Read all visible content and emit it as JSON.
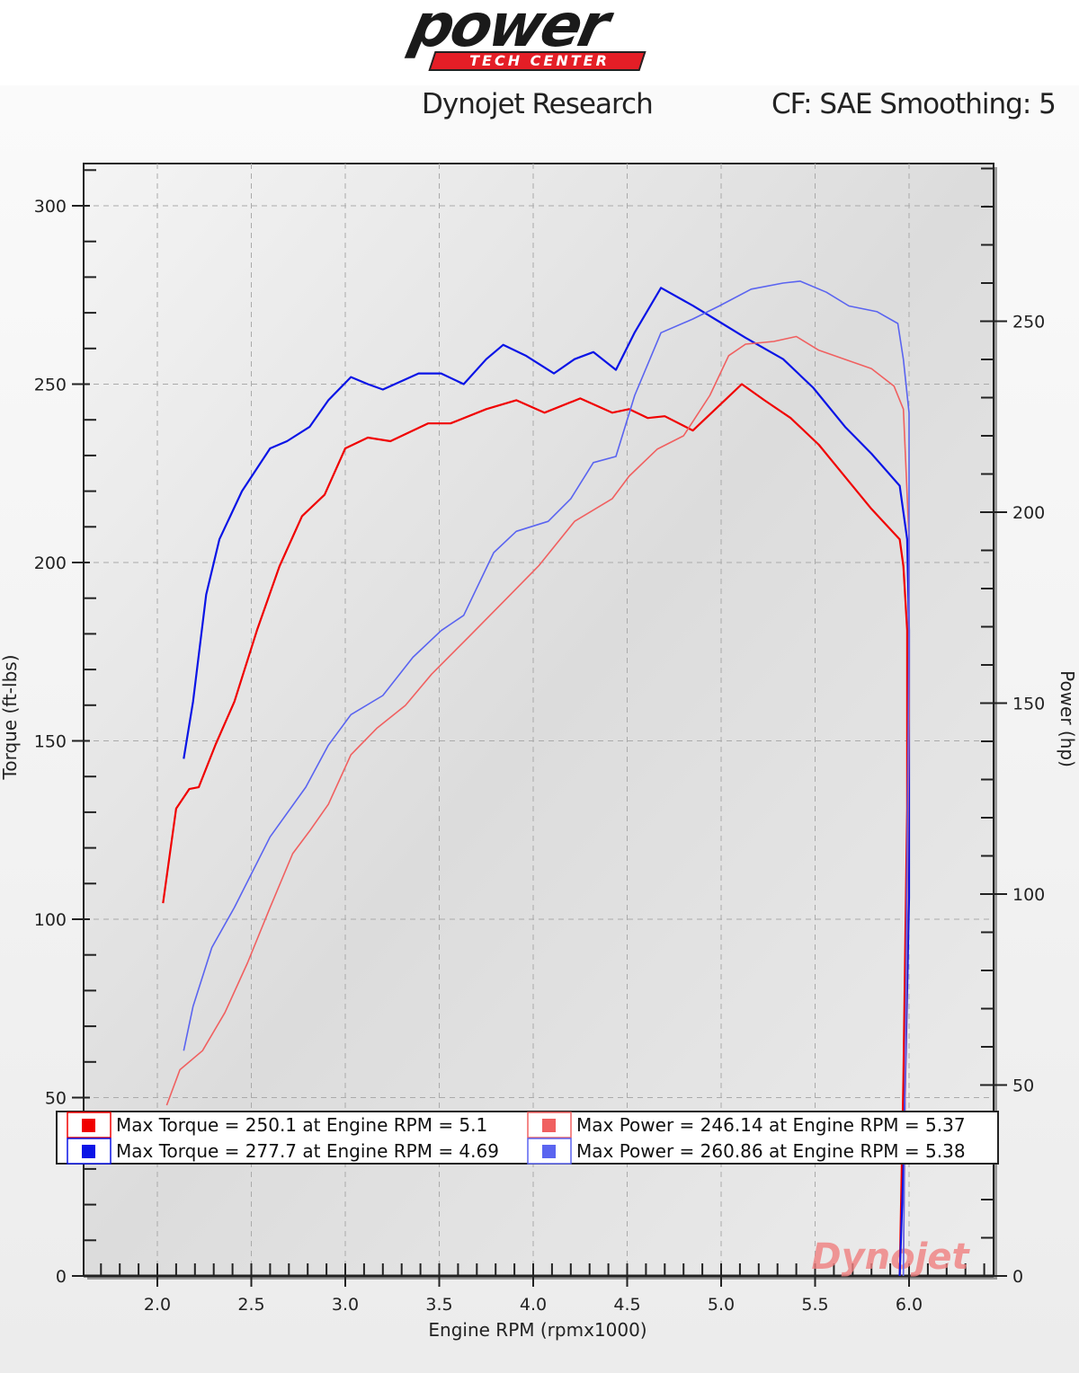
{
  "logo": {
    "word": "power",
    "sub": "TECH CENTER"
  },
  "header": {
    "title": "Dynojet Research",
    "settings": "CF: SAE Smoothing: 5"
  },
  "watermark": "Dynojet",
  "colors": {
    "torque1": "#f00000",
    "torque2": "#0a14e6",
    "power1": "#f06060",
    "power2": "#5a64f0"
  },
  "chart_data": {
    "type": "line",
    "title": "Dynojet Research",
    "subtitle": "CF: SAE Smoothing: 5",
    "xlabel": "Engine RPM (rpmx1000)",
    "ylabel": "Torque (ft-lbs)",
    "y2label": "Power (hp)",
    "xlim": [
      1.61,
      6.45
    ],
    "ylim": [
      0,
      312
    ],
    "y2lim": [
      0,
      291
    ],
    "grid": true,
    "legend_placement": "bottom",
    "xticks": [
      "2.0",
      "2.5",
      "3.0",
      "3.5",
      "4.0",
      "4.5",
      "5.0",
      "5.5",
      "6.0"
    ],
    "yticks": [
      "0",
      "50",
      "100",
      "150",
      "200",
      "250",
      "300"
    ],
    "y2ticks": [
      "0",
      "50",
      "100",
      "150",
      "200",
      "250"
    ],
    "series": [
      {
        "name": "Max Torque = 250.1 at Engine RPM = 5.1",
        "axis": "left",
        "color": "#f00000",
        "x": [
          2.03,
          2.1,
          2.17,
          2.22,
          2.31,
          2.41,
          2.53,
          2.65,
          2.77,
          2.89,
          3.0,
          3.12,
          3.24,
          3.44,
          3.56,
          3.75,
          3.91,
          4.06,
          4.25,
          4.42,
          4.51,
          4.61,
          4.7,
          4.85,
          4.99,
          5.11,
          5.23,
          5.37,
          5.52,
          5.66,
          5.8,
          5.95,
          5.97,
          5.99,
          5.99,
          5.97,
          5.95
        ],
        "y": [
          104.5,
          131,
          136.5,
          137,
          149,
          161,
          181,
          199,
          213,
          219,
          232,
          235,
          234,
          239,
          239,
          243,
          245.5,
          242,
          246,
          242,
          243,
          240.5,
          241,
          237,
          244,
          250,
          245.5,
          240.5,
          233,
          224,
          215,
          206.5,
          199,
          181,
          131,
          55,
          0
        ]
      },
      {
        "name": "Max Torque = 277.7 at Engine RPM = 4.69",
        "axis": "left",
        "color": "#0a14e6",
        "x": [
          2.14,
          2.19,
          2.26,
          2.33,
          2.45,
          2.6,
          2.69,
          2.81,
          2.91,
          3.03,
          3.12,
          3.2,
          3.39,
          3.51,
          3.63,
          3.75,
          3.84,
          3.96,
          4.11,
          4.22,
          4.32,
          4.44,
          4.54,
          4.68,
          4.85,
          4.99,
          5.13,
          5.33,
          5.49,
          5.66,
          5.8,
          5.95,
          5.99,
          6.0,
          6.0,
          5.97,
          5.95
        ],
        "y": [
          145,
          161,
          191,
          206.5,
          220,
          232,
          234,
          238,
          245.5,
          252,
          250,
          248.5,
          253,
          253,
          250,
          257,
          261,
          258,
          253,
          257,
          259,
          254,
          264.5,
          277,
          272,
          267.5,
          263,
          257,
          249,
          238,
          230.5,
          221.5,
          206.5,
          181,
          106,
          30,
          0
        ]
      },
      {
        "name": "Max Power = 246.14 at Engine RPM = 5.37",
        "axis": "right",
        "color": "#f06060",
        "x": [
          2.05,
          2.12,
          2.24,
          2.36,
          2.48,
          2.6,
          2.72,
          2.81,
          2.91,
          3.03,
          3.17,
          3.32,
          3.46,
          3.65,
          3.84,
          4.03,
          4.22,
          4.42,
          4.51,
          4.66,
          4.8,
          4.94,
          5.04,
          5.13,
          5.28,
          5.4,
          5.52,
          5.66,
          5.8,
          5.92,
          5.97,
          6.0,
          6.0,
          5.97
        ],
        "y": [
          44.7,
          54,
          59,
          69,
          82,
          96.5,
          110.6,
          116.5,
          123.5,
          136.5,
          143.5,
          149.4,
          157.6,
          167,
          176.5,
          186,
          197.6,
          203.5,
          209.4,
          216.5,
          220,
          230.6,
          241,
          244,
          244.7,
          246,
          242.4,
          240,
          237.6,
          233,
          227,
          193,
          146,
          0
        ]
      },
      {
        "name": "Max Power = 260.86 at Engine RPM = 5.38",
        "axis": "right",
        "color": "#5a64f0",
        "x": [
          2.14,
          2.19,
          2.29,
          2.41,
          2.6,
          2.79,
          2.91,
          3.03,
          3.2,
          3.36,
          3.51,
          3.63,
          3.79,
          3.91,
          4.08,
          4.2,
          4.32,
          4.44,
          4.54,
          4.68,
          4.85,
          4.99,
          5.16,
          5.33,
          5.42,
          5.56,
          5.68,
          5.83,
          5.94,
          5.97,
          6.0,
          6.0,
          5.97
        ],
        "y": [
          59,
          70.6,
          86,
          96.5,
          115,
          128,
          139,
          147,
          152,
          162,
          169,
          173,
          189.4,
          195,
          197.6,
          203.5,
          213,
          214.6,
          230.6,
          247,
          250.6,
          254,
          258.4,
          260,
          260.5,
          257.6,
          254,
          252.5,
          249.4,
          240,
          226,
          169,
          0
        ]
      }
    ]
  }
}
